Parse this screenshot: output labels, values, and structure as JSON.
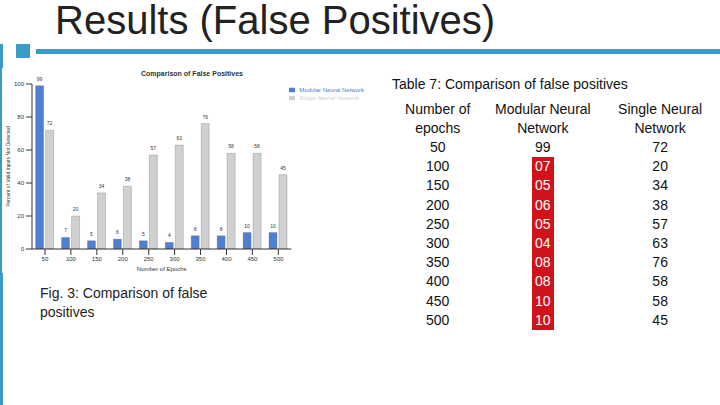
{
  "title": "Results (False Positives)",
  "chart_data": {
    "type": "bar",
    "title": "Comparison of False Positives",
    "x_label": "Number of Epochs",
    "y_label": "Percent of Valid Inputs Not Detected",
    "categories": [
      "50",
      "100",
      "150",
      "200",
      "250",
      "300",
      "350",
      "400",
      "450",
      "500"
    ],
    "series": [
      {
        "name": "Modular Neural Network",
        "color": "#4f7fd0",
        "values": [
          99,
          7,
          5,
          6,
          5,
          4,
          8,
          8,
          10,
          10
        ]
      },
      {
        "name": "Single Neural Network",
        "color": "#d0d0d0",
        "values": [
          72,
          20,
          34,
          38,
          57,
          63,
          76,
          58,
          58,
          45
        ]
      }
    ],
    "ylim": [
      0,
      100
    ],
    "yticks": [
      0,
      20,
      40,
      60,
      80,
      100
    ],
    "grid": false,
    "legend": "upper right",
    "data_labels": true
  },
  "figure_caption": "Fig. 3: Comparison of false positives",
  "table": {
    "caption": "Table 7: Comparison of false positives",
    "header": [
      "Number of epochs",
      "Modular Neural Network",
      "Single Neural Network"
    ],
    "rows": [
      [
        "50",
        "99",
        "72"
      ],
      [
        "100",
        "07",
        "20"
      ],
      [
        "150",
        "05",
        "34"
      ],
      [
        "200",
        "06",
        "38"
      ],
      [
        "250",
        "05",
        "57"
      ],
      [
        "300",
        "04",
        "63"
      ],
      [
        "350",
        "08",
        "76"
      ],
      [
        "400",
        "08",
        "58"
      ],
      [
        "450",
        "10",
        "58"
      ],
      [
        "500",
        "10",
        "45"
      ]
    ]
  }
}
